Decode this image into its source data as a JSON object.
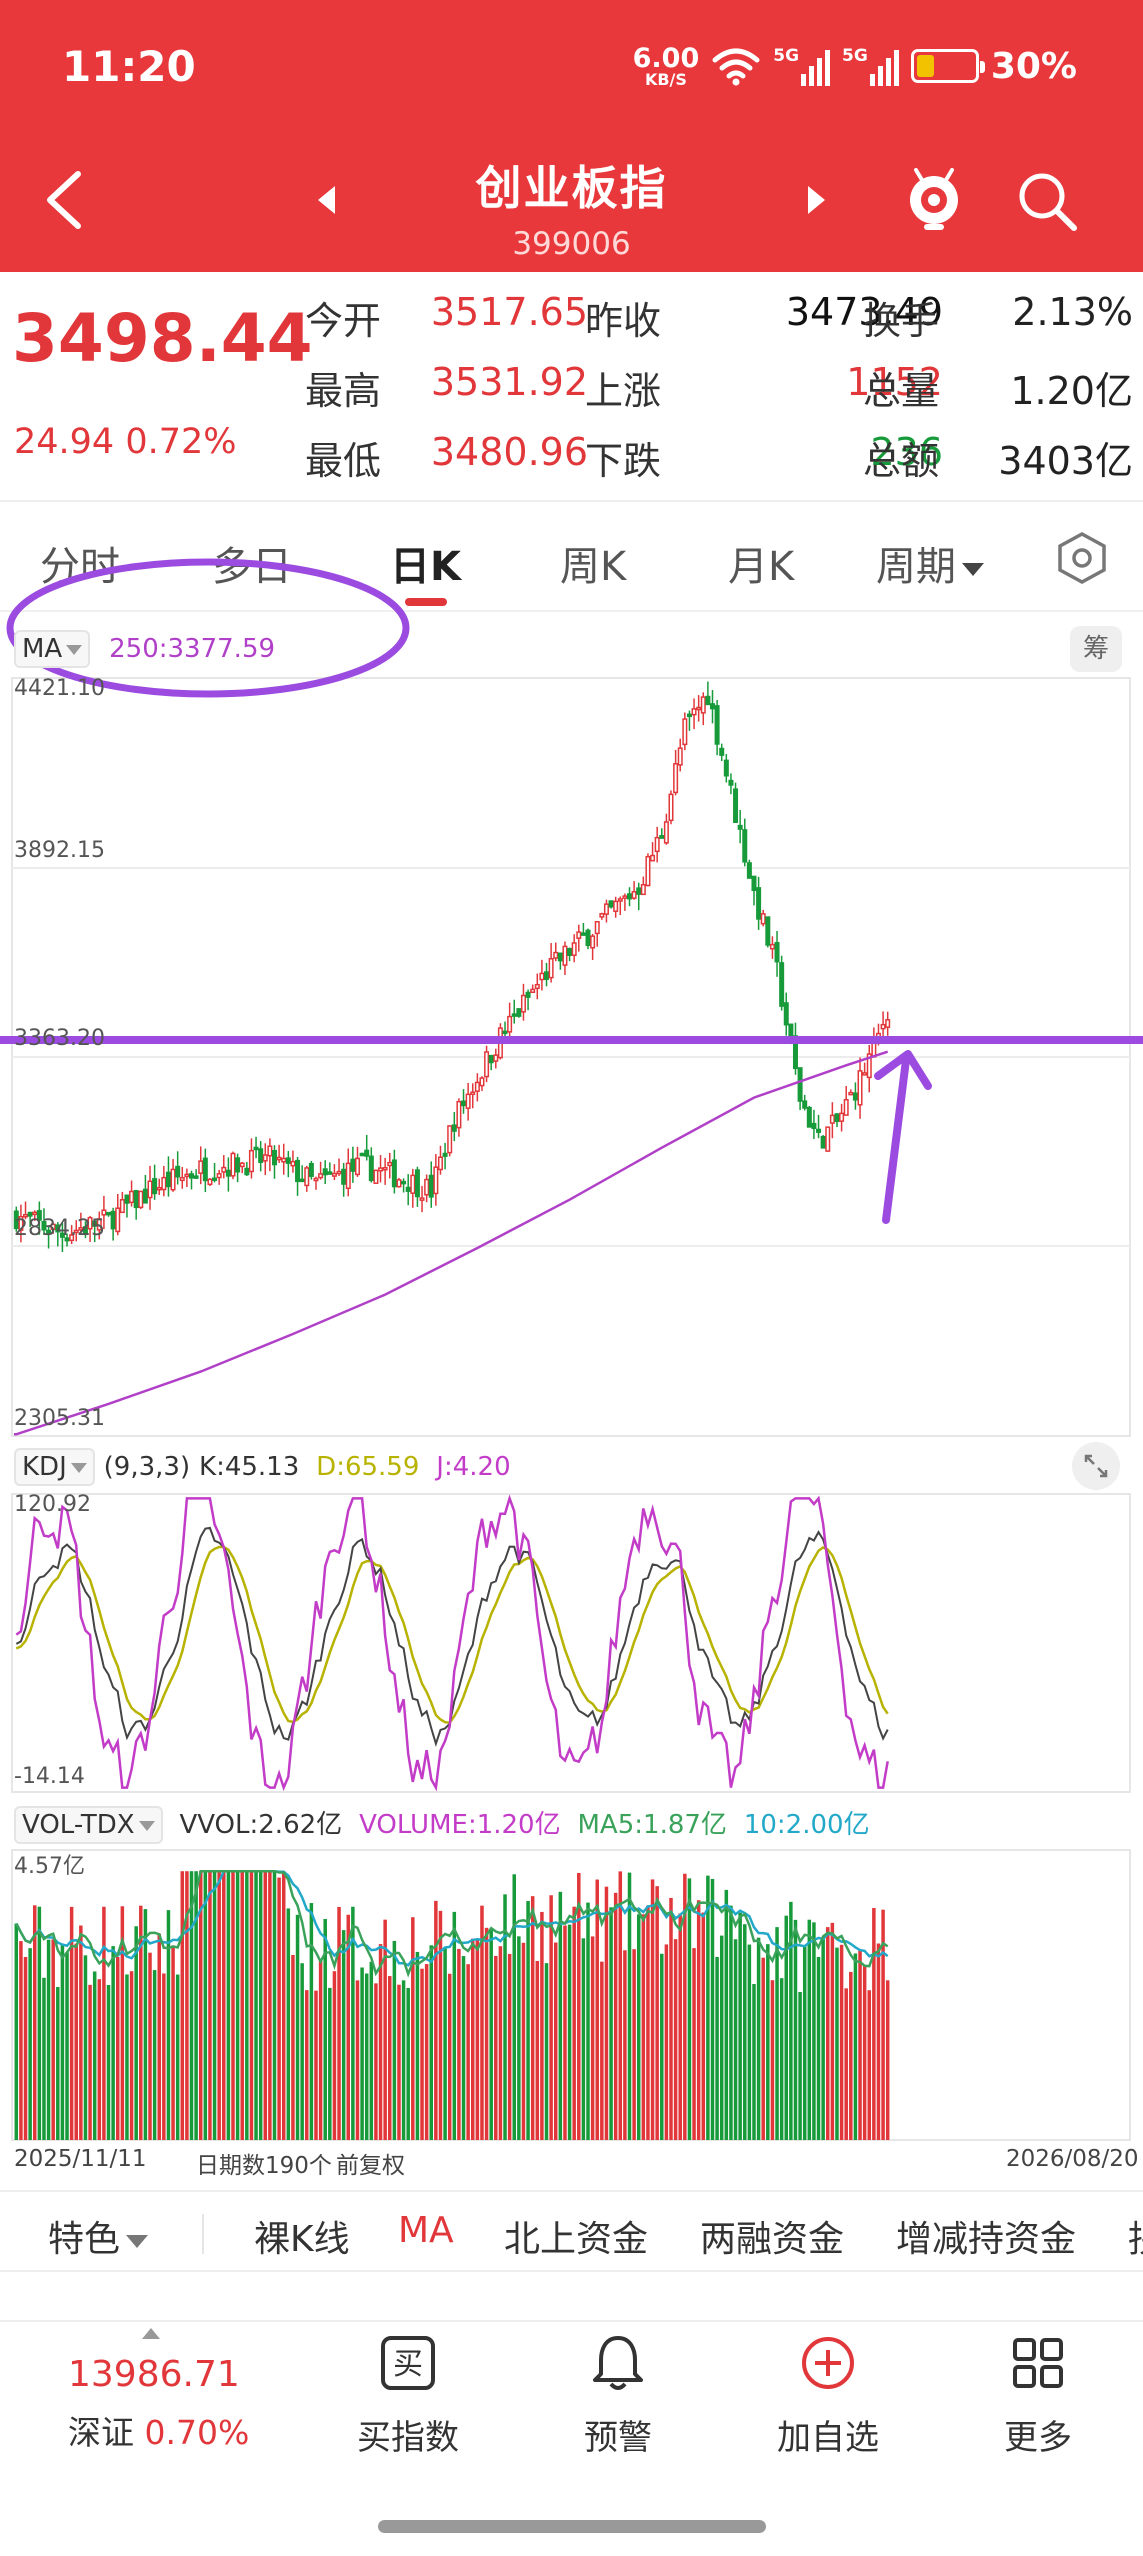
{
  "status_bar": {
    "time": "11:20",
    "net_speed": "6.00",
    "net_unit": "KB/S",
    "network_label_1": "5G",
    "network_label_2": "5G",
    "battery": "30%",
    "battery_fill_fraction": 0.3
  },
  "header": {
    "title": "创业板指",
    "code": "399006",
    "back_icon": "chevron-left-icon",
    "prev_icon": "triangle-left-icon",
    "next_icon": "triangle-right-icon",
    "assistant_icon": "robot-assistant-icon",
    "search_icon": "search-icon"
  },
  "quote": {
    "price": "3498.44",
    "change": "24.94  0.72%",
    "rows": [
      {
        "l1": "今开",
        "v1": "3517.65",
        "l2": "昨收",
        "v2": "3473.49",
        "l3": "换手",
        "v3": "2.13%"
      },
      {
        "l1": "最高",
        "v1": "3531.92",
        "l2": "上涨",
        "v2": "1152",
        "l3": "总量",
        "v3": "1.20亿"
      },
      {
        "l1": "最低",
        "v1": "3480.96",
        "l2": "下跌",
        "v2": "236",
        "l3": "总额",
        "v3": "3403亿"
      }
    ]
  },
  "tabs": {
    "items": [
      "分时",
      "多日",
      "日K",
      "周K",
      "月K",
      "周期"
    ],
    "active": "日K",
    "settings_icon": "hexagon-settings-icon"
  },
  "main_chart": {
    "indicator": "MA",
    "ma_text": "250:3377.59",
    "chips_label": "筹",
    "y_labels": [
      "4421.10",
      "3892.15",
      "3363.20",
      "2834.25",
      "2305.31"
    ]
  },
  "kdj": {
    "indicator": "KDJ",
    "params": "(9,3,3)",
    "k": "K:45.13",
    "d": "D:65.59",
    "j": "J:4.20",
    "y_top": "120.92",
    "y_bottom": "-14.14",
    "expand_icon": "expand-icon"
  },
  "volume": {
    "indicator": "VOL-TDX",
    "vvol": "VVOL:2.62亿",
    "volume": "VOLUME:1.20亿",
    "ma5": "MA5:1.87亿",
    "ma10": "10:2.00亿",
    "y_top": "4.57亿"
  },
  "date_row": {
    "start": "2025/11/11",
    "period": "日期数190个",
    "adjust": "前复权",
    "end": "2026/08/20"
  },
  "features": {
    "items": [
      "特色",
      "裸K线",
      "MA",
      "北上资金",
      "两融资金",
      "增减持资金",
      "拐"
    ],
    "active": "MA"
  },
  "bottom_bar": {
    "index_value": "13986.71",
    "index_name": "深证",
    "index_change": "0.70%",
    "items": [
      {
        "label": "买指数",
        "icon": "buy-index-icon",
        "glyph": "买"
      },
      {
        "label": "预警",
        "icon": "bell-icon"
      },
      {
        "label": "加自选",
        "icon": "add-watchlist-icon"
      },
      {
        "label": "更多",
        "icon": "grid-more-icon"
      }
    ]
  },
  "colors": {
    "header_red": "#e8383b",
    "up_red": "#e2373a",
    "down_green": "#179a3a",
    "ma_purple": "#b040c8",
    "annotation_purple": "#9b4be0",
    "kdj_k": "#444444",
    "kdj_d": "#b8b200",
    "kdj_j": "#c23cc8",
    "vol_ma5": "#3aa25a",
    "vol_ma10": "#22a8c8"
  },
  "chart_data": {
    "type": "line",
    "series": [
      {
        "name": "MA 250",
        "x": [
          0,
          20,
          40,
          60,
          80,
          100,
          120,
          140,
          160,
          180,
          189
        ],
        "y": [
          2310,
          2395,
          2485,
          2590,
          2700,
          2830,
          2965,
          3110,
          3250,
          3340,
          3378
        ]
      },
      {
        "name": "K",
        "x": [
          0,
          20,
          40,
          60,
          80,
          100,
          120,
          140,
          160,
          180,
          189
        ],
        "y": [
          40,
          70,
          55,
          80,
          45,
          90,
          60,
          85,
          20,
          70,
          45.13
        ]
      },
      {
        "name": "D",
        "x": [
          0,
          20,
          40,
          60,
          80,
          100,
          120,
          140,
          160,
          180,
          189
        ],
        "y": [
          45,
          65,
          60,
          70,
          50,
          80,
          65,
          75,
          30,
          60,
          65.59
        ]
      },
      {
        "name": "J",
        "x": [
          0,
          20,
          40,
          60,
          80,
          100,
          120,
          140,
          160,
          180,
          189
        ],
        "y": [
          30,
          110,
          20,
          120,
          -10,
          115,
          40,
          120,
          -14,
          110,
          4.2
        ]
      }
    ],
    "candles": {
      "count": 190,
      "first_close": 2920,
      "high": 4421.1,
      "low": 2834.25,
      "last_close": 3498.44
    },
    "ylim": [
      2305.31,
      4421.1
    ],
    "kdj_ylim": [
      -14.14,
      120.92
    ],
    "volume_max": "4.57亿"
  }
}
